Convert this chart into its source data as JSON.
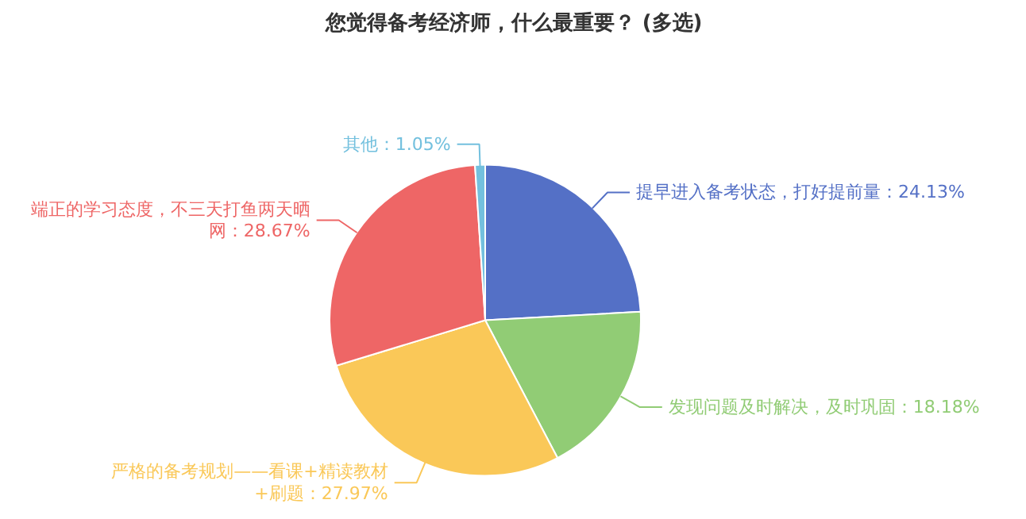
{
  "chart_data": {
    "type": "pie",
    "title": "您觉得备考经济师，什么最重要？ (多选)",
    "categories": [
      "提早进入备考状态，打好提前量",
      "发现问题及时解决，及时巩固",
      "严格的备考规划——看课+精读教材+刷题",
      "端正的学习态度，不三天打鱼两天晒网",
      "其他"
    ],
    "values": [
      24.13,
      18.18,
      27.97,
      28.67,
      1.05
    ],
    "colors": [
      "#5470c6",
      "#91cc75",
      "#fac858",
      "#ee6666",
      "#73c0de"
    ],
    "value_labels": [
      "24.13%",
      "18.18%",
      "27.97%",
      "28.67%",
      "1.05%"
    ]
  }
}
